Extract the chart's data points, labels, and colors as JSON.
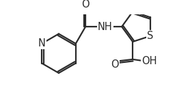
{
  "background_color": "#ffffff",
  "line_color": "#2a2a2a",
  "line_width": 1.6,
  "font_size_atoms": 10.5,
  "fig_width": 2.78,
  "fig_height": 1.42,
  "dpi": 100,
  "xlim": [
    -0.5,
    6.8
  ],
  "ylim": [
    -2.2,
    2.0
  ]
}
